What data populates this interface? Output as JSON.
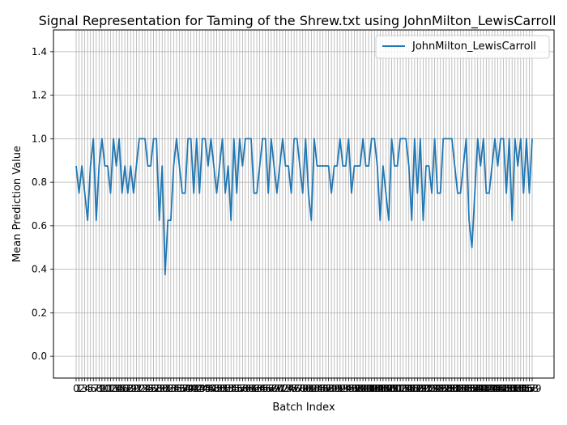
{
  "chart_data": {
    "type": "line",
    "title": "Signal Representation for Taming of the Shrew.txt using JohnMilton_LewisCarroll",
    "xlabel": "Batch Index",
    "ylabel": "Mean Prediction Value",
    "ylim": [
      -0.1,
      1.5
    ],
    "yticks": [
      0.0,
      0.2,
      0.4,
      0.6,
      0.8,
      1.0,
      1.2,
      1.4
    ],
    "ytick_labels": [
      "0.0",
      "0.2",
      "0.4",
      "0.6",
      "0.8",
      "1.0",
      "1.2",
      "1.4"
    ],
    "grid": true,
    "legend_position": "top-right",
    "line_color": "#1f77b4",
    "series": [
      {
        "name": "JohnMilton_LewisCarroll",
        "x": [
          0,
          1,
          2,
          3,
          4,
          5,
          6,
          7,
          8,
          9,
          10,
          11,
          12,
          13,
          14,
          15,
          16,
          17,
          18,
          19,
          20,
          21,
          22,
          23,
          24,
          25,
          26,
          27,
          28,
          29,
          30,
          31,
          32,
          33,
          34,
          35,
          36,
          37,
          38,
          39,
          40,
          41,
          42,
          43,
          44,
          45,
          46,
          47,
          48,
          49,
          50,
          51,
          52,
          53,
          54,
          55,
          56,
          57,
          58,
          59,
          60,
          61,
          62,
          63,
          64,
          65,
          66,
          67,
          68,
          69,
          70,
          71,
          72,
          73,
          74,
          75,
          76,
          77,
          78,
          79,
          80,
          81,
          82,
          83,
          84,
          85,
          86,
          87,
          88,
          89,
          90,
          91,
          92,
          93,
          94,
          95,
          96,
          97,
          98,
          99,
          100,
          101,
          102,
          103,
          104,
          105,
          106,
          107,
          108,
          109,
          110,
          111,
          112,
          113,
          114,
          115,
          116,
          117,
          118,
          119,
          120,
          121,
          122,
          123,
          124,
          125,
          126,
          127,
          128,
          129,
          130,
          131,
          132,
          133,
          134,
          135,
          136,
          137,
          138,
          139,
          140,
          141,
          142,
          143,
          144,
          145,
          146,
          147,
          148,
          149,
          150,
          151,
          152,
          153,
          154,
          155,
          156,
          157,
          158,
          159
        ],
        "values": [
          0.875,
          0.75,
          0.875,
          0.75,
          0.625,
          0.875,
          1.0,
          0.625,
          0.875,
          1.0,
          0.875,
          0.875,
          0.75,
          1.0,
          0.875,
          1.0,
          0.75,
          0.875,
          0.75,
          0.875,
          0.75,
          0.875,
          1.0,
          1.0,
          1.0,
          0.875,
          0.875,
          1.0,
          1.0,
          0.625,
          0.875,
          0.375,
          0.625,
          0.625,
          0.875,
          1.0,
          0.875,
          0.75,
          0.75,
          1.0,
          1.0,
          0.75,
          1.0,
          0.75,
          1.0,
          1.0,
          0.875,
          1.0,
          0.875,
          0.75,
          0.875,
          1.0,
          0.75,
          0.875,
          0.625,
          1.0,
          0.75,
          1.0,
          0.875,
          1.0,
          1.0,
          1.0,
          0.75,
          0.75,
          0.875,
          1.0,
          1.0,
          0.75,
          1.0,
          0.875,
          0.75,
          0.875,
          1.0,
          0.875,
          0.875,
          0.75,
          1.0,
          1.0,
          0.875,
          0.75,
          1.0,
          0.75,
          0.625,
          1.0,
          0.875,
          0.875,
          0.875,
          0.875,
          0.875,
          0.75,
          0.875,
          0.875,
          1.0,
          0.875,
          0.875,
          1.0,
          0.75,
          0.875,
          0.875,
          0.875,
          1.0,
          0.875,
          0.875,
          1.0,
          1.0,
          0.875,
          0.625,
          0.875,
          0.75,
          0.625,
          1.0,
          0.875,
          0.875,
          1.0,
          1.0,
          1.0,
          0.875,
          0.625,
          1.0,
          0.75,
          1.0,
          0.625,
          0.875,
          0.875,
          0.75,
          1.0,
          0.75,
          0.75,
          1.0,
          1.0,
          1.0,
          1.0,
          0.875,
          0.75,
          0.75,
          0.875,
          1.0,
          0.625,
          0.5,
          0.75,
          1.0,
          0.875,
          1.0,
          0.75,
          0.75,
          0.875,
          1.0,
          0.875,
          1.0,
          1.0,
          0.75,
          1.0,
          0.625,
          1.0,
          0.875,
          1.0,
          0.75,
          1.0,
          0.75,
          1.0
        ]
      }
    ]
  }
}
